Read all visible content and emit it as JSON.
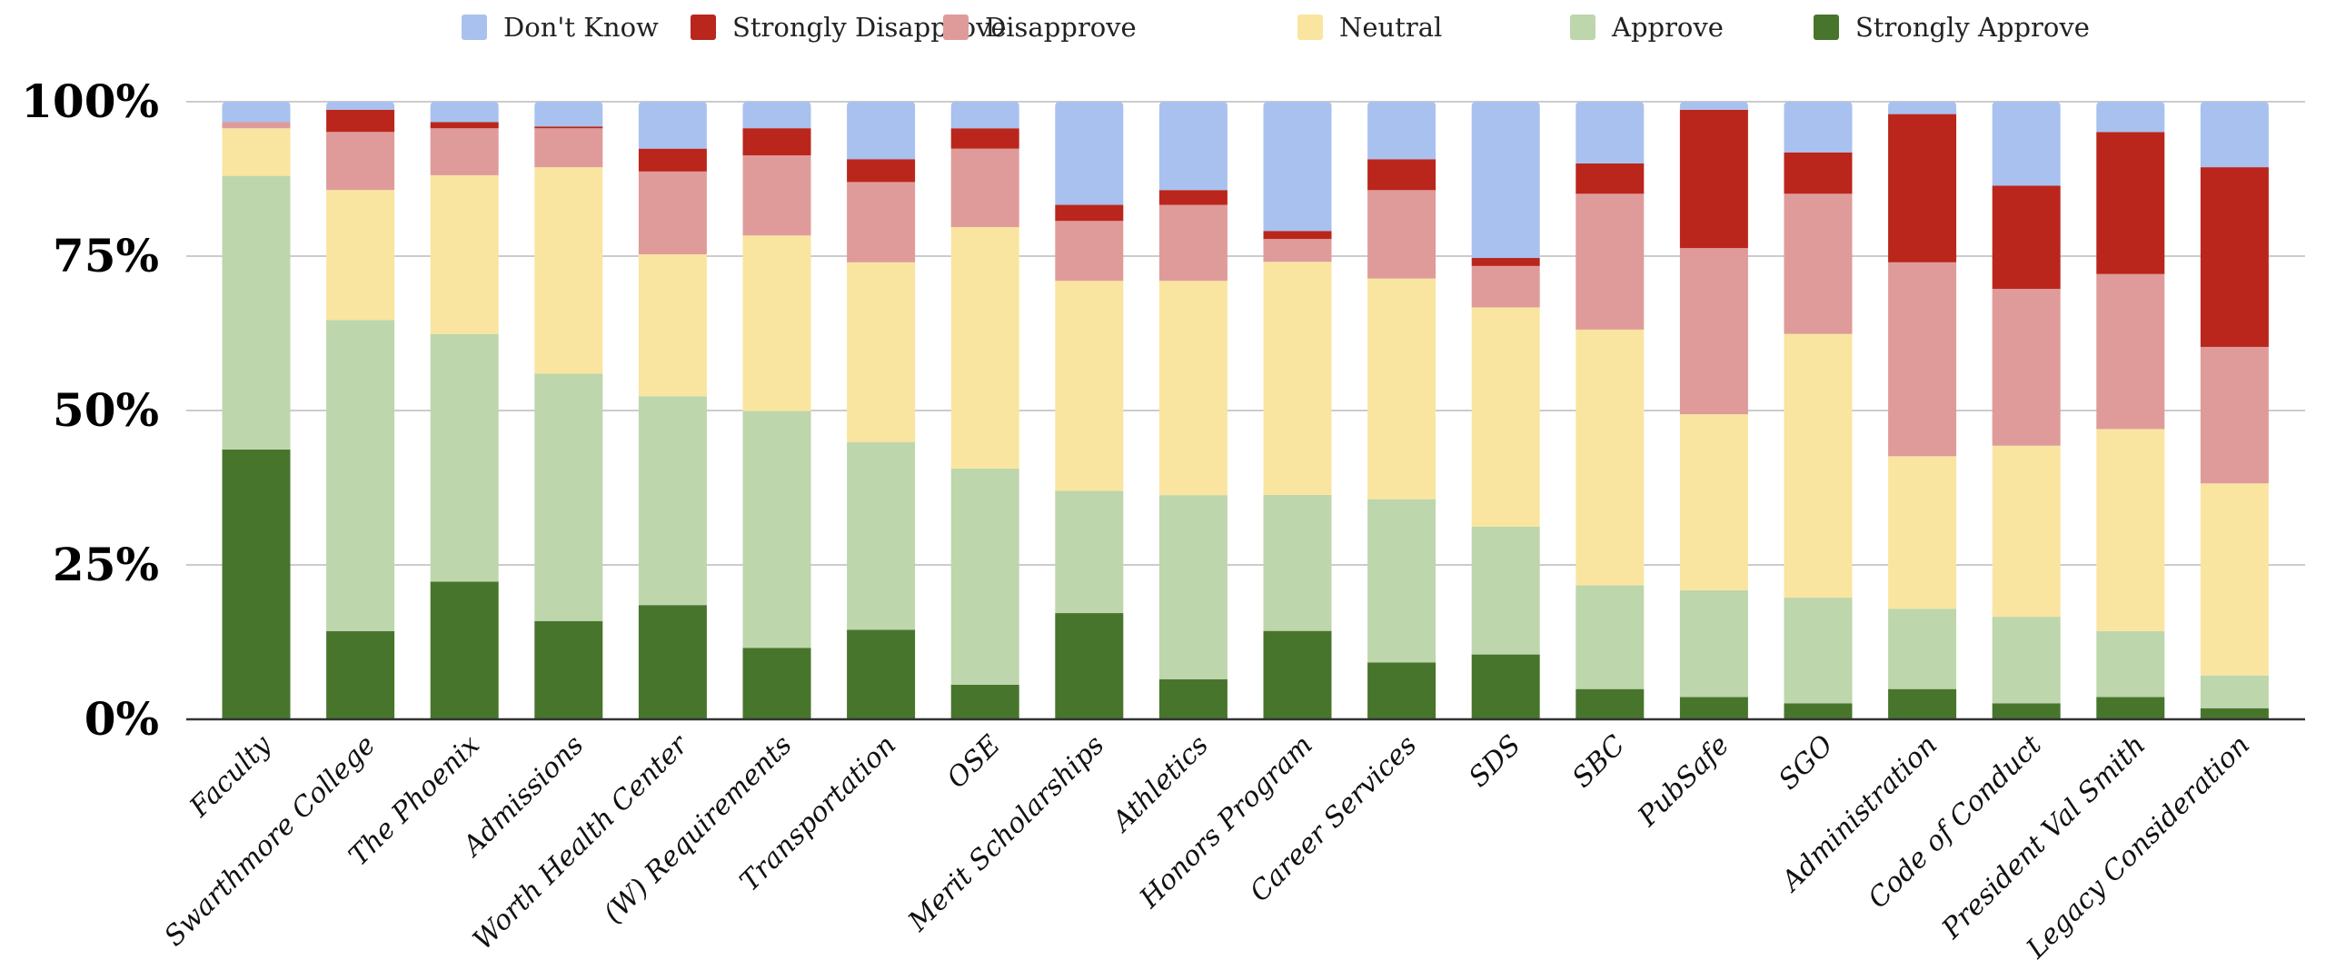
{
  "chart_data": {
    "type": "bar",
    "stacked": true,
    "normalized": true,
    "title": "",
    "xlabel": "",
    "ylabel": "",
    "ylim": [
      0,
      100
    ],
    "y_ticks": [
      "0%",
      "25%",
      "50%",
      "75%",
      "100%"
    ],
    "grid": true,
    "legend_position": "top-center",
    "categories": [
      "Faculty",
      "Swarthmore College",
      "The Phoenix",
      "Admissions",
      "Worth Health Center",
      "(W) Requirements",
      "Transportation",
      "OSE",
      "Merit Scholarships",
      "Athletics",
      "Honors Program",
      "Career Services",
      "SDS",
      "SBC",
      "PubSafe",
      "SGO",
      "Administration",
      "Code of Conduct",
      "President Val Smith",
      "Legacy Consideration"
    ],
    "series": [
      {
        "name": "Strongly Approve",
        "color": "#48752c",
        "values": [
          43.7,
          14.3,
          22.3,
          15.9,
          18.5,
          11.6,
          14.5,
          5.6,
          17.2,
          6.5,
          14.3,
          9.2,
          10.5,
          4.9,
          3.6,
          2.6,
          4.9,
          2.6,
          3.6,
          1.8
        ]
      },
      {
        "name": "Approve",
        "color": "#bdd6ac",
        "values": [
          44.3,
          50.4,
          40.1,
          40.0,
          33.8,
          38.4,
          30.4,
          35.0,
          19.8,
          29.8,
          22.0,
          26.4,
          20.7,
          16.8,
          17.3,
          17.1,
          13.0,
          14.0,
          10.7,
          5.3
        ]
      },
      {
        "name": "Neutral",
        "color": "#f9e5a0",
        "values": [
          7.7,
          21.1,
          25.7,
          33.4,
          23.0,
          28.5,
          29.1,
          39.1,
          34.0,
          34.7,
          37.7,
          35.7,
          35.5,
          41.4,
          28.5,
          42.7,
          24.7,
          27.7,
          32.7,
          31.1
        ]
      },
      {
        "name": "Disapprove",
        "color": "#df9b9a",
        "values": [
          1.0,
          9.4,
          7.6,
          6.3,
          13.4,
          13.0,
          13.0,
          12.7,
          9.7,
          12.3,
          3.7,
          14.3,
          6.7,
          22.0,
          26.9,
          22.7,
          31.4,
          25.4,
          25.1,
          22.1
        ]
      },
      {
        "name": "Strongly Disapprove",
        "color": "#ba261c",
        "values": [
          0.0,
          3.6,
          1.0,
          0.3,
          3.7,
          4.4,
          3.7,
          3.3,
          2.6,
          2.4,
          1.3,
          5.0,
          1.3,
          4.9,
          22.4,
          6.7,
          24.0,
          16.7,
          23.0,
          29.1
        ]
      },
      {
        "name": "Don't Know",
        "color": "#a9c1ee",
        "values": [
          3.3,
          1.3,
          3.3,
          4.0,
          7.6,
          4.3,
          9.3,
          4.3,
          16.7,
          14.3,
          20.9,
          9.3,
          25.3,
          10.0,
          1.3,
          8.2,
          2.0,
          13.6,
          4.9,
          10.6
        ]
      }
    ],
    "legend_order": [
      "Don't Know",
      "Strongly Disapprove",
      "Disapprove",
      "Neutral",
      "Approve",
      "Strongly Approve"
    ]
  }
}
